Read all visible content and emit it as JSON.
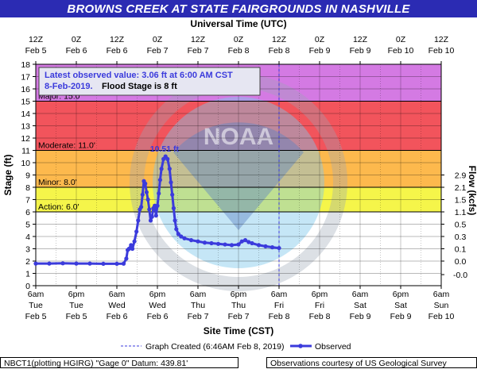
{
  "chart_data": {
    "type": "line",
    "title": "BROWNS CREEK AT STATE FAIRGROUNDS IN NASHVILLE",
    "top_axis_title": "Universal Time (UTC)",
    "top_tick_labels": [
      [
        "12Z",
        "Feb 5"
      ],
      [
        "0Z",
        "Feb 6"
      ],
      [
        "12Z",
        "Feb 6"
      ],
      [
        "0Z",
        "Feb 7"
      ],
      [
        "12Z",
        "Feb 7"
      ],
      [
        "0Z",
        "Feb 8"
      ],
      [
        "12Z",
        "Feb 8"
      ],
      [
        "0Z",
        "Feb 9"
      ],
      [
        "12Z",
        "Feb 9"
      ],
      [
        "0Z",
        "Feb 10"
      ],
      [
        "12Z",
        "Feb 10"
      ]
    ],
    "xlabel": "Site Time (CST)",
    "x_tick_labels": [
      [
        "6am",
        "Tue",
        "Feb 5"
      ],
      [
        "6pm",
        "Tue",
        "Feb 5"
      ],
      [
        "6am",
        "Wed",
        "Feb 6"
      ],
      [
        "6pm",
        "Wed",
        "Feb 6"
      ],
      [
        "6am",
        "Thu",
        "Feb 7"
      ],
      [
        "6pm",
        "Thu",
        "Feb 7"
      ],
      [
        "6am",
        "Fri",
        "Feb 8"
      ],
      [
        "6pm",
        "Fri",
        "Feb 8"
      ],
      [
        "6am",
        "Sat",
        "Feb 9"
      ],
      [
        "6pm",
        "Sat",
        "Feb 9"
      ],
      [
        "6am",
        "Sun",
        "Feb 10"
      ]
    ],
    "xlim_hours_cst": [
      0,
      120
    ],
    "x_unit_note": "hours after 6am CST Tue Feb 5",
    "ylabel": "Stage (ft)",
    "ylim": [
      0,
      18
    ],
    "y_ticks": [
      0,
      1,
      2,
      3,
      4,
      5,
      6,
      7,
      8,
      9,
      10,
      11,
      12,
      13,
      14,
      15,
      16,
      17,
      18
    ],
    "y2label": "Flow (kcfs)",
    "y2_ticks": [
      {
        "label": "-0.0",
        "stage": 0.9
      },
      {
        "label": "0.0",
        "stage": 2.0
      },
      {
        "label": "0.1",
        "stage": 3.0
      },
      {
        "label": "0.3",
        "stage": 4.0
      },
      {
        "label": "0.5",
        "stage": 5.0
      },
      {
        "label": "1.1",
        "stage": 6.0
      },
      {
        "label": "1.5",
        "stage": 7.0
      },
      {
        "label": "2.1",
        "stage": 8.0
      },
      {
        "label": "2.9",
        "stage": 9.0
      }
    ],
    "flood_categories": [
      {
        "name": "Action",
        "label": "Action: 6.0'",
        "from": 6,
        "to": 8,
        "color": "#f5f54a"
      },
      {
        "name": "Minor",
        "label": "Minor: 8.0'",
        "from": 8,
        "to": 11,
        "color": "#fdb94d"
      },
      {
        "name": "Moderate",
        "label": "Moderate: 11.0'",
        "from": 11,
        "to": 15,
        "color": "#f2545c"
      },
      {
        "name": "Major",
        "label": "Major: 15.0'",
        "from": 15,
        "to": 18,
        "color": "#d47ae3"
      }
    ],
    "annotation": {
      "line1": "Latest observed value: 3.06 ft at 6:00 AM CST",
      "line2_blue": "8-Feb-2019.",
      "line2_black": "Flood Stage is 8 ft"
    },
    "peak_label": "10.51 ft",
    "peak": {
      "x": 38.8,
      "y": 10.51
    },
    "graph_created_x": 72,
    "series": [
      {
        "name": "Observed",
        "color": "#3b3bdc",
        "points": [
          [
            0,
            1.8
          ],
          [
            4,
            1.8
          ],
          [
            8,
            1.82
          ],
          [
            12,
            1.8
          ],
          [
            16,
            1.8
          ],
          [
            20,
            1.78
          ],
          [
            24,
            1.78
          ],
          [
            26,
            1.79
          ],
          [
            26.8,
            2.2
          ],
          [
            27.2,
            2.9
          ],
          [
            27.6,
            3.0
          ],
          [
            28.2,
            3.3
          ],
          [
            28.6,
            3.0
          ],
          [
            29.2,
            3.6
          ],
          [
            29.8,
            4.4
          ],
          [
            30.3,
            5.3
          ],
          [
            30.8,
            6.2
          ],
          [
            31.2,
            6.4
          ],
          [
            31.6,
            7.4
          ],
          [
            32.0,
            8.5
          ],
          [
            32.4,
            8.3
          ],
          [
            32.8,
            7.6
          ],
          [
            33.2,
            7.0
          ],
          [
            33.6,
            6.2
          ],
          [
            34.0,
            5.3
          ],
          [
            34.4,
            5.6
          ],
          [
            34.8,
            6.3
          ],
          [
            35.2,
            6.5
          ],
          [
            35.6,
            5.7
          ],
          [
            36.0,
            6.5
          ],
          [
            36.4,
            7.5
          ],
          [
            36.8,
            8.6
          ],
          [
            37.2,
            9.5
          ],
          [
            37.8,
            10.3
          ],
          [
            38.4,
            10.51
          ],
          [
            39.0,
            10.3
          ],
          [
            39.6,
            9.5
          ],
          [
            40.0,
            8.4
          ],
          [
            40.4,
            7.4
          ],
          [
            40.8,
            6.3
          ],
          [
            41.2,
            5.3
          ],
          [
            41.6,
            4.6
          ],
          [
            42.2,
            4.2
          ],
          [
            43,
            4.0
          ],
          [
            44,
            3.85
          ],
          [
            46,
            3.7
          ],
          [
            48,
            3.6
          ],
          [
            50,
            3.5
          ],
          [
            52,
            3.45
          ],
          [
            54,
            3.4
          ],
          [
            56,
            3.35
          ],
          [
            58,
            3.3
          ],
          [
            60,
            3.35
          ],
          [
            61,
            3.6
          ],
          [
            62,
            3.7
          ],
          [
            63,
            3.55
          ],
          [
            64,
            3.45
          ],
          [
            66,
            3.3
          ],
          [
            68,
            3.2
          ],
          [
            70,
            3.12
          ],
          [
            72,
            3.06
          ]
        ]
      }
    ],
    "legend": {
      "graph_created": "Graph Created (6:46AM Feb 8, 2019)",
      "observed": "Observed"
    },
    "grid": true
  },
  "footer": {
    "left": "NBCT1(plotting HGIRG) \"Gage 0\" Datum: 439.81'",
    "right": "Observations courtesy of US Geological Survey"
  }
}
